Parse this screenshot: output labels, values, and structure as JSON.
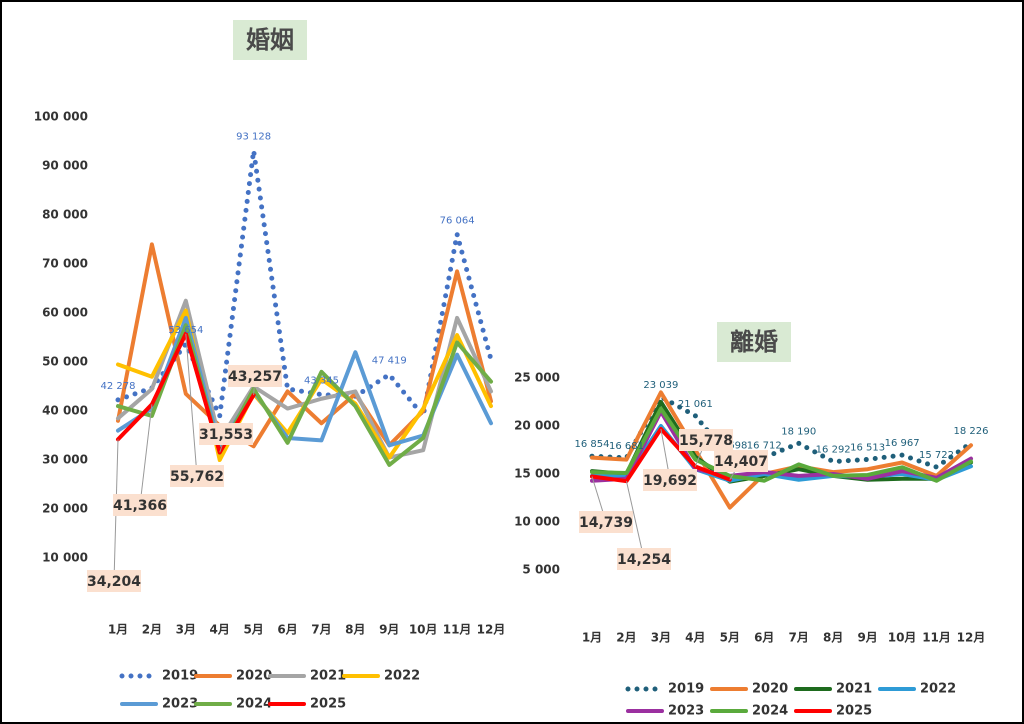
{
  "chart_data": [
    {
      "type": "line",
      "title": "婚姻",
      "categories": [
        "1月",
        "2月",
        "3月",
        "4月",
        "5月",
        "6月",
        "7月",
        "8月",
        "9月",
        "10月",
        "11月",
        "12月"
      ],
      "ylim": [
        0,
        100000
      ],
      "yticks": [
        {
          "value": 10000,
          "label": "10 000"
        },
        {
          "value": 20000,
          "label": "20 000"
        },
        {
          "value": 30000,
          "label": "30 000"
        },
        {
          "value": 40000,
          "label": "40 000"
        },
        {
          "value": 50000,
          "label": "50 000"
        },
        {
          "value": 60000,
          "label": "60 000"
        },
        {
          "value": 70000,
          "label": "70 000"
        },
        {
          "value": 80000,
          "label": "80 000"
        },
        {
          "value": 90000,
          "label": "90 000"
        },
        {
          "value": 100000,
          "label": "100 000"
        }
      ],
      "series": [
        {
          "name": "2019",
          "color": "#4472c4",
          "dotted": true,
          "values": [
            42278,
            44700,
            53654,
            39000,
            93128,
            44500,
            43345,
            43000,
            47419,
            39000,
            76064,
            50500
          ],
          "value_labels": [
            "42 278",
            null,
            "53 654",
            null,
            "93 128",
            null,
            "43 345",
            null,
            "47 419",
            null,
            "76 064",
            null
          ]
        },
        {
          "name": "2020",
          "color": "#ed7d31",
          "values": [
            38000,
            74000,
            43500,
            37000,
            32800,
            44000,
            37500,
            43500,
            33000,
            40000,
            68500,
            42000
          ]
        },
        {
          "name": "2021",
          "color": "#a5a5a5",
          "values": [
            38500,
            44500,
            62500,
            34000,
            45000,
            40500,
            42500,
            44000,
            30500,
            32000,
            59000,
            44000
          ]
        },
        {
          "name": "2022",
          "color": "#ffc000",
          "values": [
            49500,
            47000,
            60500,
            30000,
            43500,
            35500,
            46500,
            41500,
            30500,
            40500,
            55500,
            41000
          ]
        },
        {
          "name": "2023",
          "color": "#5b9bd5",
          "values": [
            36000,
            40500,
            59000,
            32500,
            44000,
            34500,
            34000,
            52000,
            33000,
            35000,
            51500,
            37500
          ]
        },
        {
          "name": "2024",
          "color": "#70ad47",
          "values": [
            41000,
            39000,
            57500,
            31500,
            44500,
            33500,
            48000,
            41000,
            29000,
            34500,
            54000,
            46000
          ]
        },
        {
          "name": "2025",
          "color": "#ff0000",
          "callouts": true,
          "values": [
            34204,
            41366,
            55762,
            31553,
            43257,
            null,
            null,
            null,
            null,
            null,
            null,
            null
          ],
          "value_labels": [
            "34,204",
            "41,366",
            "55,762",
            "31,553",
            "43,257",
            null,
            null,
            null,
            null,
            null,
            null,
            null
          ]
        }
      ]
    },
    {
      "type": "line",
      "title": "離婚",
      "categories": [
        "1月",
        "2月",
        "3月",
        "4月",
        "5月",
        "6月",
        "7月",
        "8月",
        "9月",
        "10月",
        "11月",
        "12月"
      ],
      "ylim": [
        0,
        25000
      ],
      "yticks": [
        {
          "value": 5000,
          "label": "5 000"
        },
        {
          "value": 10000,
          "label": "10 000"
        },
        {
          "value": 15000,
          "label": "15 000"
        },
        {
          "value": 20000,
          "label": "20 000"
        },
        {
          "value": 25000,
          "label": "25 000"
        }
      ],
      "series": [
        {
          "name": "2019",
          "color": "#1f5f7a",
          "dotted": true,
          "values": [
            16854,
            16681,
            23039,
            21061,
            16698,
            16712,
            18190,
            16292,
            16513,
            16967,
            15722,
            18226
          ],
          "value_labels": [
            "16 854",
            "16 681",
            "23 039",
            "21 061",
            "16 698",
            "16 712",
            "18 190",
            "16 292",
            "16 513",
            "16 967",
            "15 722",
            "18 226"
          ]
        },
        {
          "name": "2020",
          "color": "#ed7d31",
          "values": [
            16700,
            16500,
            23500,
            17500,
            11500,
            15000,
            15800,
            15200,
            15500,
            16200,
            14800,
            18000
          ]
        },
        {
          "name": "2021",
          "color": "#1e6b1e",
          "values": [
            15300,
            15000,
            22500,
            16800,
            14200,
            14800,
            15500,
            14800,
            14400,
            14500,
            14500,
            16200
          ]
        },
        {
          "name": "2022",
          "color": "#2e9bd6",
          "values": [
            14800,
            14700,
            20000,
            15500,
            14300,
            15000,
            14400,
            14800,
            14700,
            15000,
            14400,
            15800
          ]
        },
        {
          "name": "2023",
          "color": "#9b30a0",
          "values": [
            14300,
            14500,
            21500,
            15500,
            14800,
            15200,
            14800,
            15000,
            14500,
            15300,
            14600,
            16600
          ]
        },
        {
          "name": "2024",
          "color": "#5aaa3c",
          "values": [
            15200,
            15100,
            21800,
            16500,
            14800,
            14300,
            16000,
            14800,
            14900,
            15700,
            14300,
            16300
          ]
        },
        {
          "name": "2025",
          "color": "#ff0000",
          "callouts": true,
          "values": [
            14739,
            14254,
            19692,
            15778,
            14407,
            null,
            null,
            null,
            null,
            null,
            null,
            null
          ],
          "value_labels": [
            "14,739",
            "14,254",
            "19,692",
            "15,778",
            "14,407",
            null,
            null,
            null,
            null,
            null,
            null,
            null
          ]
        }
      ]
    }
  ]
}
